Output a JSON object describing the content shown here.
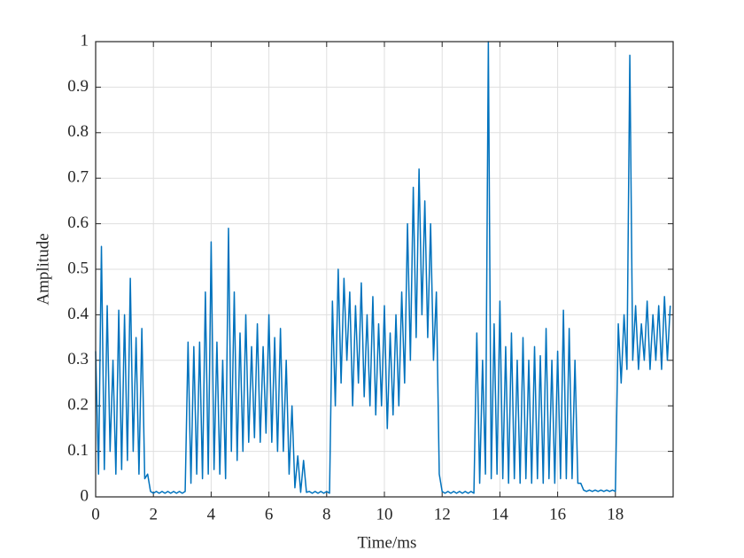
{
  "chart_data": {
    "type": "line",
    "xlabel": "Time/ms",
    "ylabel": "Amplitude",
    "x": [
      0,
      0.1,
      0.2,
      0.3,
      0.4,
      0.5,
      0.6,
      0.7,
      0.8,
      0.9,
      1,
      1.1,
      1.2,
      1.3,
      1.4,
      1.5,
      1.6,
      1.7,
      1.8,
      1.9,
      2,
      2.1,
      2.2,
      2.3,
      2.4,
      2.5,
      2.6,
      2.7,
      2.8,
      2.9,
      3,
      3.1,
      3.2,
      3.3,
      3.4,
      3.5,
      3.6,
      3.7,
      3.8,
      3.9,
      4,
      4.1,
      4.2,
      4.3,
      4.4,
      4.5,
      4.6,
      4.7,
      4.8,
      4.9,
      5,
      5.1,
      5.2,
      5.3,
      5.4,
      5.5,
      5.6,
      5.7,
      5.8,
      5.9,
      6,
      6.1,
      6.2,
      6.3,
      6.4,
      6.5,
      6.6,
      6.7,
      6.8,
      6.9,
      7,
      7.1,
      7.2,
      7.3,
      7.4,
      7.5,
      7.6,
      7.7,
      7.8,
      7.9,
      8,
      8.1,
      8.2,
      8.3,
      8.4,
      8.5,
      8.6,
      8.7,
      8.8,
      8.9,
      9,
      9.1,
      9.2,
      9.3,
      9.4,
      9.5,
      9.6,
      9.7,
      9.8,
      9.9,
      10,
      10.1,
      10.2,
      10.3,
      10.4,
      10.5,
      10.6,
      10.7,
      10.8,
      10.9,
      11,
      11.1,
      11.2,
      11.3,
      11.4,
      11.5,
      11.6,
      11.7,
      11.8,
      11.9,
      12,
      12.1,
      12.2,
      12.3,
      12.4,
      12.5,
      12.6,
      12.7,
      12.8,
      12.9,
      13,
      13.1,
      13.2,
      13.3,
      13.4,
      13.5,
      13.6,
      13.7,
      13.8,
      13.9,
      14,
      14.1,
      14.2,
      14.3,
      14.4,
      14.5,
      14.6,
      14.7,
      14.8,
      14.9,
      15,
      15.1,
      15.2,
      15.3,
      15.4,
      15.5,
      15.6,
      15.7,
      15.8,
      15.9,
      16,
      16.1,
      16.2,
      16.3,
      16.4,
      16.5,
      16.6,
      16.7,
      16.8,
      16.9,
      17,
      17.1,
      17.2,
      17.3,
      17.4,
      17.5,
      17.6,
      17.7,
      17.8,
      17.9,
      18,
      18.1,
      18.2,
      18.3,
      18.4,
      18.5,
      18.6,
      18.7,
      18.8,
      18.9,
      19,
      19.1,
      19.2,
      19.3,
      19.4,
      19.5,
      19.6,
      19.7,
      19.8,
      19.9
    ],
    "series": [
      {
        "color": "#0072bd",
        "values": [
          0.32,
          0.05,
          0.55,
          0.06,
          0.42,
          0.1,
          0.3,
          0.05,
          0.41,
          0.06,
          0.4,
          0.08,
          0.48,
          0.1,
          0.35,
          0.05,
          0.37,
          0.04,
          0.05,
          0.012,
          0.008,
          0.012,
          0.008,
          0.012,
          0.008,
          0.012,
          0.008,
          0.012,
          0.008,
          0.012,
          0.008,
          0.012,
          0.34,
          0.03,
          0.33,
          0.05,
          0.34,
          0.04,
          0.45,
          0.05,
          0.56,
          0.06,
          0.34,
          0.05,
          0.3,
          0.04,
          0.59,
          0.1,
          0.45,
          0.08,
          0.36,
          0.1,
          0.4,
          0.12,
          0.33,
          0.13,
          0.38,
          0.12,
          0.33,
          0.14,
          0.4,
          0.12,
          0.35,
          0.1,
          0.37,
          0.1,
          0.3,
          0.05,
          0.2,
          0.02,
          0.09,
          0.01,
          0.08,
          0.01,
          0.012,
          0.008,
          0.012,
          0.008,
          0.012,
          0.008,
          0.012,
          0.008,
          0.43,
          0.2,
          0.5,
          0.25,
          0.48,
          0.3,
          0.45,
          0.2,
          0.42,
          0.25,
          0.47,
          0.22,
          0.4,
          0.2,
          0.44,
          0.18,
          0.38,
          0.2,
          0.42,
          0.15,
          0.36,
          0.18,
          0.4,
          0.2,
          0.45,
          0.25,
          0.6,
          0.3,
          0.68,
          0.35,
          0.72,
          0.4,
          0.65,
          0.35,
          0.6,
          0.3,
          0.45,
          0.05,
          0.012,
          0.008,
          0.012,
          0.008,
          0.012,
          0.008,
          0.012,
          0.008,
          0.012,
          0.008,
          0.012,
          0.008,
          0.36,
          0.03,
          0.3,
          0.05,
          1,
          0.04,
          0.38,
          0.05,
          0.43,
          0.04,
          0.33,
          0.03,
          0.36,
          0.04,
          0.3,
          0.03,
          0.35,
          0.04,
          0.3,
          0.03,
          0.33,
          0.04,
          0.31,
          0.03,
          0.37,
          0.04,
          0.3,
          0.03,
          0.32,
          0.04,
          0.41,
          0.04,
          0.37,
          0.04,
          0.3,
          0.03,
          0.03,
          0.015,
          0.012,
          0.015,
          0.012,
          0.015,
          0.012,
          0.015,
          0.012,
          0.015,
          0.012,
          0.015,
          0.012,
          0.38,
          0.25,
          0.4,
          0.28,
          0.97,
          0.3,
          0.42,
          0.28,
          0.38,
          0.3,
          0.43,
          0.28,
          0.4,
          0.3,
          0.42,
          0.28,
          0.44,
          0.3,
          0.42
        ]
      }
    ],
    "xlim": [
      0,
      20
    ],
    "xticks": [
      0,
      2,
      4,
      6,
      8,
      10,
      12,
      14,
      16,
      18
    ],
    "ylim": [
      0,
      1
    ],
    "yticks": [
      0,
      0.1,
      0.2,
      0.3,
      0.4,
      0.5,
      0.6,
      0.7,
      0.8,
      0.9,
      1
    ],
    "grid": true
  }
}
